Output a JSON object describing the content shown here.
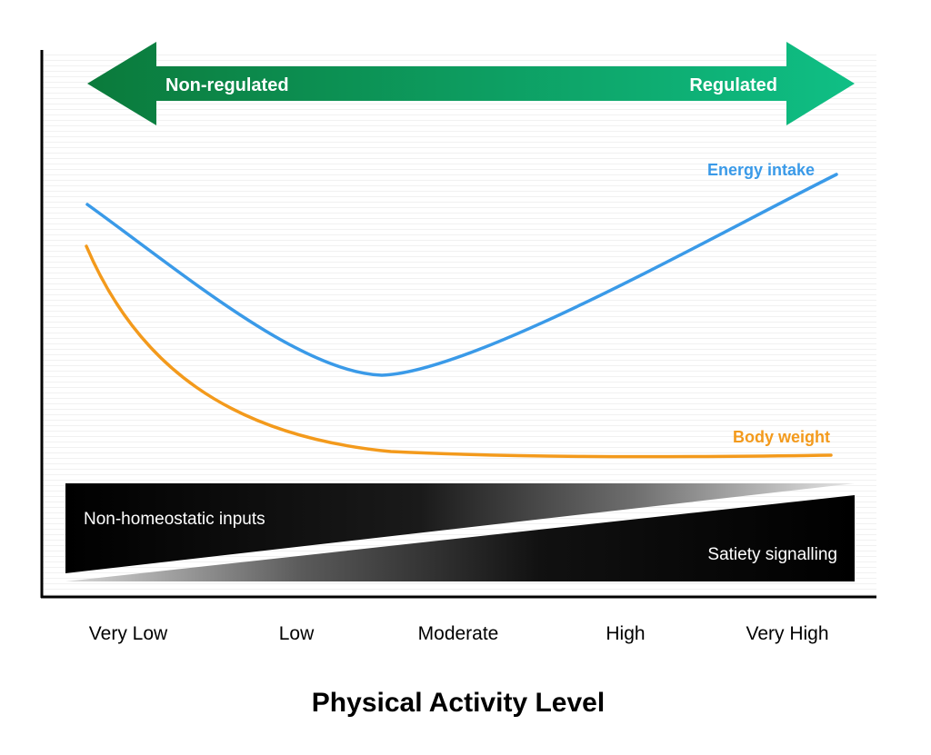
{
  "arrow": {
    "left_label": "Non-regulated",
    "right_label": "Regulated",
    "color_dark": "#0b7a3b",
    "color_light": "#0fbf85"
  },
  "curves": {
    "energy_intake": {
      "label": "Energy intake",
      "color": "#3a9ae8"
    },
    "body_weight": {
      "label": "Body weight",
      "color": "#f39a1c"
    }
  },
  "wedges": {
    "upper_label": "Non-homeostatic inputs",
    "lower_label": "Satiety signalling"
  },
  "axis": {
    "ticks": [
      "Very Low",
      "Low",
      "Moderate",
      "High",
      "Very High"
    ],
    "title": "Physical Activity Level"
  }
}
